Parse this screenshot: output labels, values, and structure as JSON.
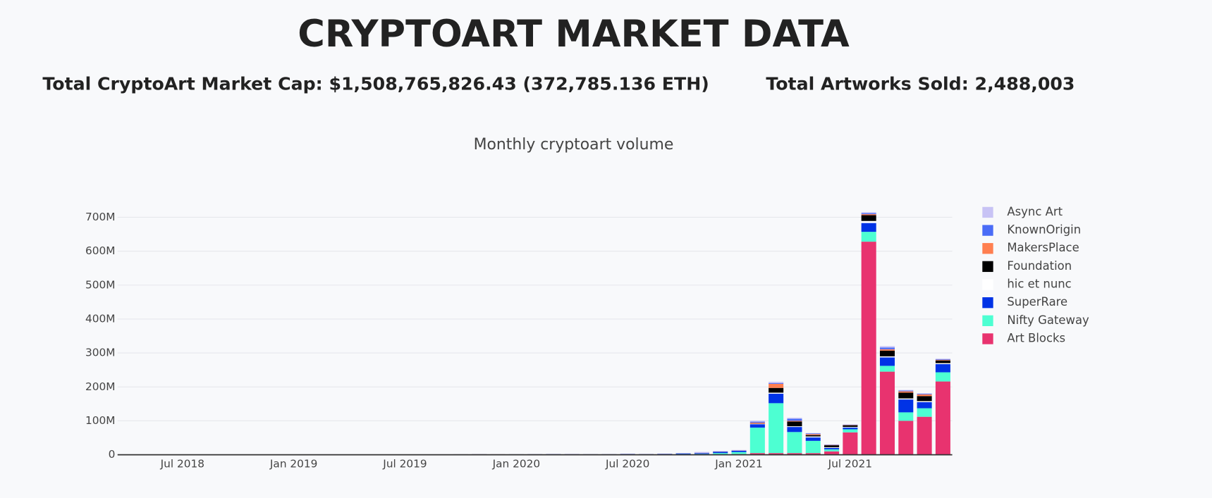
{
  "header": {
    "title": "CRYPTOART MARKET DATA",
    "market_cap": "Total CryptoArt Market Cap: $1,508,765,826.43 (372,785.136 ETH)",
    "artworks_sold": "Total Artworks Sold: 2,488,003"
  },
  "chart_data": {
    "type": "stacked_bar",
    "title": "Monthly cryptoart volume",
    "x": [
      "2018-04",
      "2018-05",
      "2018-06",
      "2018-07",
      "2018-08",
      "2018-09",
      "2018-10",
      "2018-11",
      "2018-12",
      "2019-01",
      "2019-02",
      "2019-03",
      "2019-04",
      "2019-05",
      "2019-06",
      "2019-07",
      "2019-08",
      "2019-09",
      "2019-10",
      "2019-11",
      "2019-12",
      "2020-01",
      "2020-02",
      "2020-03",
      "2020-04",
      "2020-05",
      "2020-06",
      "2020-07",
      "2020-08",
      "2020-09",
      "2020-10",
      "2020-11",
      "2020-12",
      "2021-01",
      "2021-02",
      "2021-03",
      "2021-04",
      "2021-05",
      "2021-06",
      "2021-07",
      "2021-08",
      "2021-09",
      "2021-10",
      "2021-11",
      "2021-12"
    ],
    "xticks": [
      {
        "value": "2018-07",
        "label": "Jul 2018"
      },
      {
        "value": "2019-01",
        "label": "Jan 2019"
      },
      {
        "value": "2019-07",
        "label": "Jul 2019"
      },
      {
        "value": "2020-01",
        "label": "Jan 2020"
      },
      {
        "value": "2020-07",
        "label": "Jul 2020"
      },
      {
        "value": "2021-01",
        "label": "Jan 2021"
      },
      {
        "value": "2021-07",
        "label": "Jul 2021"
      }
    ],
    "ylim": [
      0,
      760
    ],
    "yticks": [
      0,
      {
        "value": 100,
        "label": "100M"
      },
      {
        "value": 200,
        "label": "200M"
      },
      {
        "value": 300,
        "label": "300M"
      },
      {
        "value": 400,
        "label": "400M"
      },
      {
        "value": 500,
        "label": "500M"
      },
      {
        "value": 600,
        "label": "600M"
      },
      {
        "value": 700,
        "label": "700M"
      }
    ],
    "grid": true,
    "legend": "right",
    "series": [
      {
        "name": "Art Blocks",
        "color": "#e8336f",
        "values": [
          0,
          0,
          0,
          0,
          0,
          0,
          0,
          0,
          0,
          0,
          0,
          0,
          0,
          0,
          0,
          0,
          0,
          0,
          0,
          0,
          0,
          0,
          0,
          0,
          0,
          0,
          0,
          0,
          0,
          0,
          0,
          0.5,
          1,
          2,
          5,
          5,
          5,
          5,
          10,
          66,
          628,
          245,
          100,
          112,
          216
        ]
      },
      {
        "name": "Nifty Gateway",
        "color": "#4dffd2",
        "values": [
          0,
          0,
          0,
          0,
          0,
          0,
          0,
          0,
          0,
          0,
          0,
          0,
          0,
          0,
          0,
          0,
          0,
          0,
          0,
          0,
          0,
          0,
          0,
          0.3,
          0.5,
          0.5,
          0.8,
          1,
          0.8,
          1,
          2,
          2,
          4,
          6,
          75,
          147,
          62,
          36,
          6,
          9,
          29,
          17,
          25,
          25,
          27
        ]
      },
      {
        "name": "SuperRare",
        "color": "#0033e6",
        "values": [
          0.2,
          0.3,
          0.3,
          0.4,
          0.5,
          0.4,
          0.3,
          0.4,
          0.5,
          0.6,
          0.8,
          1,
          0.8,
          0.7,
          0.6,
          0.7,
          0.9,
          1,
          1.2,
          1.5,
          1.3,
          1.2,
          1.5,
          1.5,
          1.2,
          1,
          0.8,
          1.2,
          1,
          1.5,
          2,
          2,
          4,
          4,
          10,
          28,
          15,
          10,
          4,
          5,
          26,
          25,
          38,
          18,
          24
        ]
      },
      {
        "name": "hic et nunc",
        "color": "#ffffff",
        "values": [
          0,
          0,
          0,
          0,
          0,
          0,
          0,
          0,
          0,
          0,
          0,
          0,
          0,
          0,
          0,
          0,
          0,
          0,
          0,
          0,
          0,
          0,
          0,
          0,
          0,
          0,
          0,
          0,
          0,
          0,
          0,
          0,
          0,
          0.3,
          1,
          3,
          2,
          3,
          2,
          2,
          6,
          3,
          3,
          3,
          3
        ]
      },
      {
        "name": "Foundation",
        "color": "#000000",
        "values": [
          0,
          0,
          0,
          0,
          0,
          0,
          0,
          0,
          0,
          0,
          0,
          0,
          0,
          0,
          0,
          0,
          0,
          0,
          0,
          0,
          0,
          0,
          0,
          0,
          0,
          0,
          0,
          0,
          0,
          0,
          0,
          0,
          0,
          0,
          0.5,
          14,
          14,
          4,
          6,
          5,
          17,
          17,
          17,
          15,
          8
        ]
      },
      {
        "name": "MakersPlace",
        "color": "#ff7f50",
        "values": [
          0.1,
          0.1,
          0.1,
          0.1,
          0.1,
          0.1,
          0.1,
          0.1,
          0.1,
          0.2,
          0.2,
          0.2,
          0.2,
          0.2,
          0.2,
          0.2,
          0.2,
          0.2,
          0.2,
          0.2,
          0.2,
          0.2,
          0.2,
          0.2,
          0.2,
          0.2,
          0.2,
          0.2,
          0.2,
          0.2,
          0.2,
          0.5,
          0.5,
          0.5,
          3,
          12,
          2,
          3,
          1,
          1,
          3,
          4,
          4,
          5,
          2
        ]
      },
      {
        "name": "KnownOrigin",
        "color": "#4a6cf7",
        "values": [
          0.1,
          0.1,
          0.1,
          0.1,
          0.1,
          0.1,
          0.1,
          0.1,
          0.1,
          0.1,
          0.1,
          0.1,
          0.1,
          0.1,
          0.1,
          0.1,
          0.1,
          0.1,
          0.1,
          0.1,
          0.1,
          0.2,
          0.2,
          0.2,
          0.2,
          0.2,
          0.2,
          0.2,
          0.2,
          0.2,
          0.2,
          0.3,
          0.5,
          0.5,
          3,
          2,
          6,
          2,
          1,
          1,
          3,
          5,
          2,
          2,
          2
        ]
      },
      {
        "name": "Async Art",
        "color": "#c8c3f5",
        "values": [
          0,
          0,
          0,
          0,
          0,
          0,
          0,
          0,
          0,
          0,
          0,
          0,
          0,
          0,
          0,
          0,
          0,
          0,
          0,
          0,
          0,
          0,
          0.2,
          0.3,
          0.3,
          0.3,
          0.3,
          0.3,
          0.3,
          0.3,
          0.3,
          3,
          1,
          1,
          3,
          4,
          3,
          1,
          0.5,
          0.5,
          3,
          4,
          2,
          1,
          1
        ]
      }
    ]
  }
}
